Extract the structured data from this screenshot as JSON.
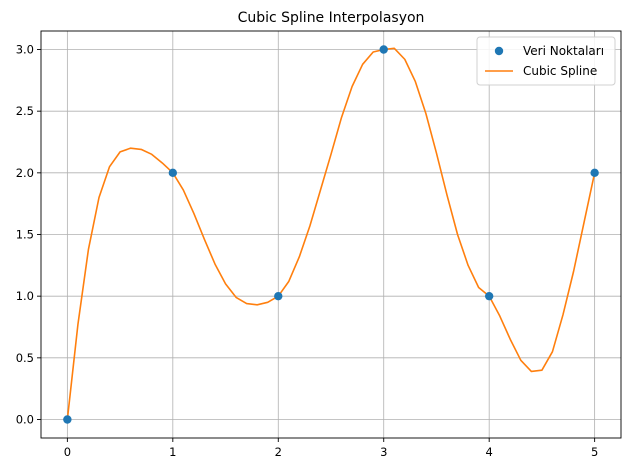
{
  "chart_data": {
    "type": "line",
    "title": "Cubic Spline Interpolasyon",
    "xlabel": "",
    "ylabel": "",
    "xlim": [
      -0.25,
      5.25
    ],
    "ylim": [
      -0.15,
      3.15
    ],
    "x_ticks": [
      0,
      1,
      2,
      3,
      4,
      5
    ],
    "x_tick_labels": [
      "0",
      "1",
      "2",
      "3",
      "4",
      "5"
    ],
    "y_ticks": [
      0.0,
      0.5,
      1.0,
      1.5,
      2.0,
      2.5,
      3.0
    ],
    "y_tick_labels": [
      "0.0",
      "0.5",
      "1.0",
      "1.5",
      "2.0",
      "2.5",
      "3.0"
    ],
    "grid": true,
    "legend_position": "top-right",
    "series": [
      {
        "name": "Veri Noktaları",
        "kind": "scatter",
        "color": "#1f77b4",
        "x": [
          0,
          1,
          2,
          3,
          4,
          5
        ],
        "y": [
          0,
          2,
          1,
          3,
          1,
          2
        ]
      },
      {
        "name": "Cubic Spline",
        "kind": "line",
        "color": "#ff7f0e",
        "x": [
          0,
          0.1,
          0.2,
          0.3,
          0.4,
          0.5,
          0.6,
          0.7,
          0.8,
          0.9,
          1.0,
          1.1,
          1.2,
          1.3,
          1.4,
          1.5,
          1.6,
          1.7,
          1.8,
          1.9,
          2.0,
          2.1,
          2.2,
          2.3,
          2.4,
          2.5,
          2.6,
          2.7,
          2.8,
          2.9,
          3.0,
          3.1,
          3.2,
          3.3,
          3.4,
          3.5,
          3.6,
          3.7,
          3.8,
          3.9,
          4.0,
          4.1,
          4.2,
          4.3,
          4.4,
          4.5,
          4.6,
          4.7,
          4.8,
          4.9,
          5.0
        ],
        "y": [
          0.0,
          0.77,
          1.38,
          1.8,
          2.05,
          2.17,
          2.2,
          2.19,
          2.15,
          2.08,
          2.0,
          1.86,
          1.67,
          1.46,
          1.26,
          1.1,
          0.99,
          0.94,
          0.93,
          0.95,
          1.0,
          1.12,
          1.32,
          1.57,
          1.86,
          2.15,
          2.45,
          2.7,
          2.88,
          2.98,
          3.0,
          3.01,
          2.92,
          2.74,
          2.48,
          2.16,
          1.82,
          1.5,
          1.25,
          1.07,
          1.0,
          0.84,
          0.65,
          0.48,
          0.39,
          0.4,
          0.55,
          0.85,
          1.2,
          1.6,
          2.0
        ]
      }
    ]
  }
}
